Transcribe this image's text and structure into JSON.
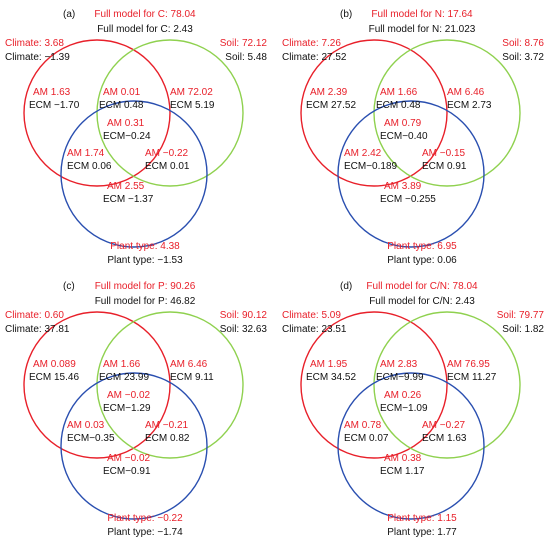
{
  "panels": [
    {
      "label": "(a)",
      "full_am": "Full model for C: 78.04",
      "full_ecm": "Full model for C: 2.43",
      "climate_am": "Climate: 3.68",
      "climate_ecm": "Climate: −1.39",
      "soil_am": "Soil: 72.12",
      "soil_ecm": "Soil: 5.48",
      "plant_am": "Plant type: 4.38",
      "plant_ecm": "Plant type: −1.53",
      "regions": {
        "climate_only": {
          "am": "AM 1.63",
          "ecm": "ECM −1.70"
        },
        "climate_soil": {
          "am": "AM 0.01",
          "ecm": "ECM 0.48"
        },
        "soil_only": {
          "am": "AM 72.02",
          "ecm": "ECM 5.19"
        },
        "center": {
          "am": "AM 0.31",
          "ecm": "ECM−0.24"
        },
        "climate_plant": {
          "am": "AM 1.74",
          "ecm": "ECM 0.06"
        },
        "soil_plant": {
          "am": "AM −0.22",
          "ecm": "ECM 0.01"
        },
        "plant_only": {
          "am": "AM 2.55",
          "ecm": "ECM −1.37"
        }
      }
    },
    {
      "label": "(b)",
      "full_am": "Full model for N: 17.64",
      "full_ecm": "Full model for N: 21.023",
      "climate_am": "Climate: 7.26",
      "climate_ecm": "Climate: 27.52",
      "soil_am": "Soil: 8.76",
      "soil_ecm": "Soil: 3.72",
      "plant_am": "Plant type: 6.95",
      "plant_ecm": "Plant type: 0.06",
      "regions": {
        "climate_only": {
          "am": "AM 2.39",
          "ecm": "ECM 27.52"
        },
        "climate_soil": {
          "am": "AM 1.66",
          "ecm": "ECM 0.48"
        },
        "soil_only": {
          "am": "AM 6.46",
          "ecm": "ECM 2.73"
        },
        "center": {
          "am": "AM 0.79",
          "ecm": "ECM−0.40"
        },
        "climate_plant": {
          "am": "AM 2.42",
          "ecm": "ECM−0.189"
        },
        "soil_plant": {
          "am": "AM −0.15",
          "ecm": "ECM 0.91"
        },
        "plant_only": {
          "am": "AM 3.89",
          "ecm": "ECM −0.255"
        }
      }
    },
    {
      "label": "(c)",
      "full_am": "Full model for P: 90.26",
      "full_ecm": "Full model for P: 46.82",
      "climate_am": "Climate: 0.60",
      "climate_ecm": "Climate: 37.81",
      "soil_am": "Soil: 90.12",
      "soil_ecm": "Soil: 32.63",
      "plant_am": "Plant type: −0.22",
      "plant_ecm": "Plant type: −1.74",
      "regions": {
        "climate_only": {
          "am": "AM 0.089",
          "ecm": "ECM 15.46"
        },
        "climate_soil": {
          "am": "AM 1.66",
          "ecm": "ECM 23.99"
        },
        "soil_only": {
          "am": "AM 6.46",
          "ecm": "ECM 9.11"
        },
        "center": {
          "am": "AM −0.02",
          "ecm": "ECM−1.29"
        },
        "climate_plant": {
          "am": "AM 0.03",
          "ecm": "ECM−0.35"
        },
        "soil_plant": {
          "am": "AM −0.21",
          "ecm": "ECM 0.82"
        },
        "plant_only": {
          "am": "AM −0.02",
          "ecm": "ECM−0.91"
        }
      }
    },
    {
      "label": "(d)",
      "full_am": "Full model for C/N: 78.04",
      "full_ecm": "Full model for C/N: 2.43",
      "climate_am": "Climate: 5.09",
      "climate_ecm": "Climate: 23.51",
      "soil_am": "Soil: 79.77",
      "soil_ecm": "Soil: 1.82",
      "plant_am": "Plant type: 1.15",
      "plant_ecm": "Plant type: 1.77",
      "regions": {
        "climate_only": {
          "am": "AM 1.95",
          "ecm": "ECM 34.52"
        },
        "climate_soil": {
          "am": "AM 2.83",
          "ecm": "ECM−9.99"
        },
        "soil_only": {
          "am": "AM 76.95",
          "ecm": "ECM 11.27"
        },
        "center": {
          "am": "AM 0.26",
          "ecm": "ECM−1.09"
        },
        "climate_plant": {
          "am": "AM 0.78",
          "ecm": "ECM 0.07"
        },
        "soil_plant": {
          "am": "AM −0.27",
          "ecm": "ECM 1.63"
        },
        "plant_only": {
          "am": "AM 0.38",
          "ecm": "ECM 1.17"
        }
      }
    }
  ],
  "colors": {
    "climate_circle": "#e8202a",
    "soil_circle": "#8fd14f",
    "plant_circle": "#2a4fb0",
    "am_text": "#e8202a",
    "ecm_text": "#111111"
  }
}
